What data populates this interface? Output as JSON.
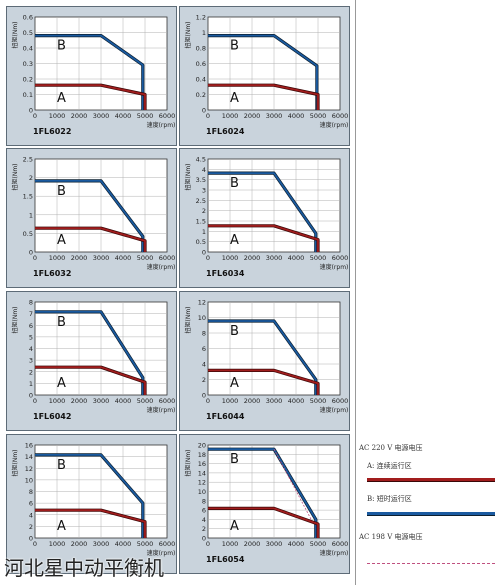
{
  "axis_texts": {
    "ylabel": "扭矩(Nm)",
    "xlabel": "速度(rpm)"
  },
  "colors": {
    "panel_bg": "#c9d3dc",
    "plot_bg": "#ffffff",
    "curve_b": "#1a5aa0",
    "curve_b_dark": "#0d2030",
    "curve_a": "#a11d1d",
    "curve_a_dark": "#3a0808",
    "grid": "#b0b0b0"
  },
  "legend": {
    "ac220": "AC 220 V 电源电压",
    "a_label": "A: 连续运行区",
    "b_label": "B: 短时运行区",
    "ac198": "AC 198 V 电源电压"
  },
  "watermark": "河北星中动平衡机",
  "chart_data": [
    {
      "type": "line",
      "title": "1FL6022",
      "xlim": [
        0,
        6000
      ],
      "ylim": [
        0,
        0.6
      ],
      "yticks": [
        "0",
        "0.1",
        "0.2",
        "0.3",
        "0.4",
        "0.5",
        "0.6"
      ],
      "xticks": [
        "0",
        "1000",
        "2000",
        "3000",
        "4000",
        "5000",
        "6000"
      ],
      "series": [
        {
          "name": "B",
          "x": [
            0,
            3000,
            4900,
            4900
          ],
          "y": [
            0.48,
            0.48,
            0.29,
            0
          ]
        },
        {
          "name": "A",
          "x": [
            0,
            3000,
            5000,
            5000
          ],
          "y": [
            0.16,
            0.16,
            0.1,
            0
          ]
        }
      ]
    },
    {
      "type": "line",
      "title": "1FL6024",
      "xlim": [
        0,
        6000
      ],
      "ylim": [
        0,
        1.2
      ],
      "yticks": [
        "0",
        "0.2",
        "0.4",
        "0.6",
        "0.8",
        "1",
        "1.2"
      ],
      "xticks": [
        "0",
        "1000",
        "2000",
        "3000",
        "4000",
        "5000",
        "6000"
      ],
      "series": [
        {
          "name": "B",
          "x": [
            0,
            3000,
            4950,
            4950
          ],
          "y": [
            0.96,
            0.96,
            0.57,
            0
          ]
        },
        {
          "name": "A",
          "x": [
            0,
            3000,
            5000,
            5000
          ],
          "y": [
            0.32,
            0.32,
            0.2,
            0
          ]
        }
      ]
    },
    {
      "type": "line",
      "title": "1FL6032",
      "xlim": [
        0,
        6000
      ],
      "ylim": [
        0,
        2.5
      ],
      "yticks": [
        "0",
        "0.5",
        "1",
        "1.5",
        "2",
        "2.5"
      ],
      "xticks": [
        "0",
        "1000",
        "2000",
        "3000",
        "4000",
        "5000",
        "6000"
      ],
      "series": [
        {
          "name": "B",
          "x": [
            0,
            3000,
            4900,
            4900
          ],
          "y": [
            1.91,
            1.91,
            0.42,
            0
          ]
        },
        {
          "name": "A",
          "x": [
            0,
            3000,
            5000,
            5000
          ],
          "y": [
            0.64,
            0.64,
            0.3,
            0
          ]
        }
      ]
    },
    {
      "type": "line",
      "title": "1FL6034",
      "xlim": [
        0,
        6000
      ],
      "ylim": [
        0,
        4.5
      ],
      "yticks": [
        "0",
        "0.5",
        "1",
        "1.5",
        "2",
        "2.5",
        "3",
        "3.5",
        "4",
        "4.5"
      ],
      "xticks": [
        "0",
        "1000",
        "2000",
        "3000",
        "4000",
        "5000",
        "6000"
      ],
      "series": [
        {
          "name": "B",
          "x": [
            0,
            3000,
            4900,
            4900
          ],
          "y": [
            3.82,
            3.82,
            0.9,
            0
          ]
        },
        {
          "name": "A",
          "x": [
            0,
            3000,
            5000,
            5000
          ],
          "y": [
            1.27,
            1.27,
            0.6,
            0
          ]
        }
      ]
    },
    {
      "type": "line",
      "title": "1FL6042",
      "xlim": [
        0,
        6000
      ],
      "ylim": [
        0,
        8
      ],
      "yticks": [
        "0",
        "1",
        "2",
        "3",
        "4",
        "5",
        "6",
        "7",
        "8"
      ],
      "xticks": [
        "0",
        "1000",
        "2000",
        "3000",
        "4000",
        "5000",
        "6000"
      ],
      "series": [
        {
          "name": "B",
          "x": [
            0,
            3000,
            4900,
            4900
          ],
          "y": [
            7.16,
            7.16,
            1.5,
            0
          ]
        },
        {
          "name": "A",
          "x": [
            0,
            3000,
            5000,
            5000
          ],
          "y": [
            2.39,
            2.39,
            1.1,
            0
          ]
        }
      ]
    },
    {
      "type": "line",
      "title": "1FL6044",
      "xlim": [
        0,
        6000
      ],
      "ylim": [
        0,
        12
      ],
      "yticks": [
        "0",
        "2",
        "4",
        "6",
        "8",
        "10",
        "12"
      ],
      "xticks": [
        "0",
        "1000",
        "2000",
        "3000",
        "4000",
        "5000",
        "6000"
      ],
      "series": [
        {
          "name": "B",
          "x": [
            0,
            3000,
            4900,
            4900
          ],
          "y": [
            9.55,
            9.55,
            2,
            0
          ]
        },
        {
          "name": "A",
          "x": [
            0,
            3000,
            5000,
            5000
          ],
          "y": [
            3.18,
            3.18,
            1.5,
            0
          ]
        }
      ]
    },
    {
      "type": "line",
      "title": "",
      "xlim": [
        0,
        6000
      ],
      "ylim": [
        0,
        16
      ],
      "yticks": [
        "0",
        "2",
        "4",
        "6",
        "8",
        "10",
        "12",
        "14",
        "16"
      ],
      "xticks": [
        "0",
        "1000",
        "2000",
        "3000",
        "4000",
        "5000",
        "6000"
      ],
      "series": [
        {
          "name": "B",
          "x": [
            0,
            3000,
            4900,
            4900
          ],
          "y": [
            14.3,
            14.3,
            6,
            0
          ]
        },
        {
          "name": "A",
          "x": [
            0,
            3000,
            5000,
            5000
          ],
          "y": [
            4.78,
            4.78,
            2.8,
            0
          ]
        }
      ]
    },
    {
      "type": "line",
      "title": "1FL6054",
      "xlim": [
        0,
        6000
      ],
      "ylim": [
        0,
        20
      ],
      "yticks": [
        "0",
        "2",
        "4",
        "6",
        "8",
        "10",
        "12",
        "14",
        "16",
        "18",
        "20"
      ],
      "xticks": [
        "0",
        "1000",
        "2000",
        "3000",
        "4000",
        "5000",
        "6000"
      ],
      "series": [
        {
          "name": "B",
          "x": [
            0,
            3000,
            4900,
            4900
          ],
          "y": [
            19.1,
            19.1,
            4,
            0
          ]
        },
        {
          "name": "B (AC 198 V)",
          "x": [
            3000,
            4800
          ],
          "y": [
            19.1,
            3
          ],
          "style": "dashed"
        },
        {
          "name": "A",
          "x": [
            0,
            3000,
            5000,
            5000
          ],
          "y": [
            6.37,
            6.37,
            3,
            0
          ]
        }
      ]
    }
  ]
}
